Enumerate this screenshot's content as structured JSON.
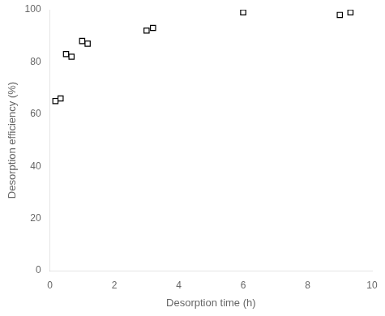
{
  "chart_data": {
    "type": "scatter",
    "x": [
      0.17,
      0.33,
      0.5,
      0.67,
      1.0,
      1.17,
      3.0,
      3.2,
      6.0,
      9.0,
      9.33
    ],
    "values": [
      65,
      66,
      83,
      82,
      88,
      87,
      92,
      93,
      99,
      98,
      99
    ],
    "xlabel": "Desorption time (h)",
    "ylabel": "Desorption efficiency (%)",
    "xlim": [
      0,
      10
    ],
    "ylim": [
      0,
      100
    ],
    "xticks": [
      0,
      2,
      4,
      6,
      8,
      10
    ],
    "yticks": [
      0,
      20,
      40,
      60,
      80,
      100
    ],
    "color": "black",
    "marker": "square",
    "grid": false
  }
}
